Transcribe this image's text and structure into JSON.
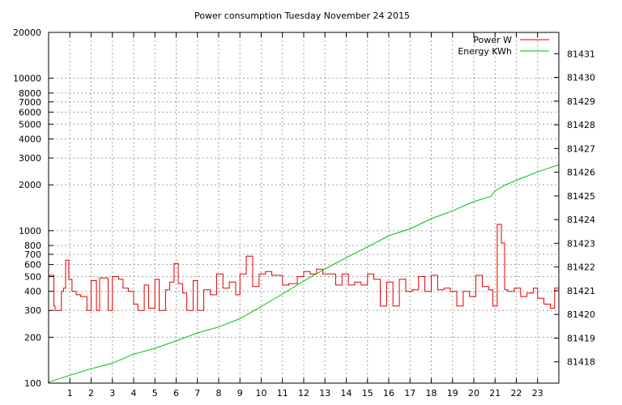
{
  "chart_data": {
    "type": "line",
    "title": "Power consumption Tuesday November 24 2015",
    "xlabel": "",
    "ylabel": "",
    "y_scale": "log",
    "ylim": [
      100,
      20000
    ],
    "y2lim": [
      81417.1,
      81431.9
    ],
    "xlim": [
      0,
      24
    ],
    "x_ticks": [
      1,
      2,
      3,
      4,
      5,
      6,
      7,
      8,
      9,
      10,
      11,
      12,
      13,
      14,
      15,
      16,
      17,
      18,
      19,
      20,
      21,
      22,
      23
    ],
    "y_ticks": [
      100,
      200,
      300,
      400,
      500,
      600,
      700,
      800,
      1000,
      2000,
      3000,
      4000,
      5000,
      6000,
      7000,
      8000,
      10000,
      20000
    ],
    "y2_ticks": [
      81418,
      81419,
      81420,
      81421,
      81422,
      81423,
      81424,
      81425,
      81426,
      81427,
      81428,
      81429,
      81430,
      81431
    ],
    "grid": true,
    "legend_position": "top-right",
    "series": [
      {
        "name": "Power W",
        "color": "#e00000",
        "axis": "left",
        "step": true,
        "x": [
          0,
          0.25,
          0.3,
          0.6,
          0.7,
          0.8,
          0.95,
          1.1,
          1.3,
          1.5,
          1.8,
          2.0,
          2.25,
          2.4,
          2.8,
          3.0,
          3.3,
          3.5,
          3.75,
          4.0,
          4.2,
          4.5,
          4.7,
          5.0,
          5.2,
          5.5,
          5.7,
          5.9,
          6.1,
          6.3,
          6.5,
          6.8,
          7.0,
          7.3,
          7.6,
          7.9,
          8.2,
          8.5,
          8.8,
          9.0,
          9.3,
          9.6,
          9.9,
          10.2,
          10.5,
          10.8,
          11.0,
          11.3,
          11.7,
          12.0,
          12.3,
          12.6,
          12.9,
          13.2,
          13.5,
          13.8,
          14.1,
          14.4,
          14.7,
          15.0,
          15.3,
          15.6,
          15.9,
          16.2,
          16.5,
          16.8,
          17.1,
          17.4,
          17.7,
          18.0,
          18.3,
          18.6,
          18.9,
          19.2,
          19.5,
          19.8,
          20.1,
          20.4,
          20.7,
          20.9,
          21.1,
          21.3,
          21.45,
          21.6,
          21.9,
          22.2,
          22.5,
          22.8,
          23.0,
          23.3,
          23.6,
          23.8,
          24
        ],
        "y": [
          510,
          320,
          300,
          400,
          420,
          640,
          480,
          400,
          380,
          370,
          300,
          470,
          300,
          490,
          300,
          500,
          480,
          420,
          400,
          330,
          300,
          440,
          310,
          480,
          300,
          410,
          460,
          610,
          450,
          390,
          300,
          470,
          300,
          410,
          380,
          520,
          420,
          460,
          380,
          520,
          680,
          430,
          520,
          540,
          510,
          510,
          440,
          450,
          500,
          540,
          520,
          560,
          520,
          520,
          440,
          520,
          440,
          460,
          440,
          520,
          480,
          320,
          460,
          320,
          480,
          400,
          410,
          500,
          400,
          510,
          410,
          420,
          400,
          320,
          400,
          370,
          510,
          430,
          410,
          320,
          1100,
          830,
          410,
          400,
          420,
          370,
          390,
          420,
          360,
          330,
          310,
          420,
          320
        ]
      },
      {
        "name": "Energy KWh",
        "color": "#00c000",
        "axis": "right",
        "step": false,
        "x": [
          0,
          1,
          2,
          3,
          4,
          5,
          6,
          7,
          8,
          9,
          10,
          11,
          12,
          13,
          14,
          15,
          16,
          17,
          18,
          19,
          20,
          20.8,
          21.0,
          21.5,
          22,
          23,
          24
        ],
        "y": [
          81417.14,
          81417.43,
          81417.71,
          81417.94,
          81418.32,
          81418.57,
          81418.88,
          81419.22,
          81419.47,
          81419.82,
          81420.33,
          81420.86,
          81421.41,
          81421.92,
          81422.39,
          81422.85,
          81423.32,
          81423.61,
          81424.04,
          81424.37,
          81424.76,
          81424.98,
          81425.22,
          81425.47,
          81425.66,
          81426.01,
          81426.32
        ]
      }
    ]
  }
}
